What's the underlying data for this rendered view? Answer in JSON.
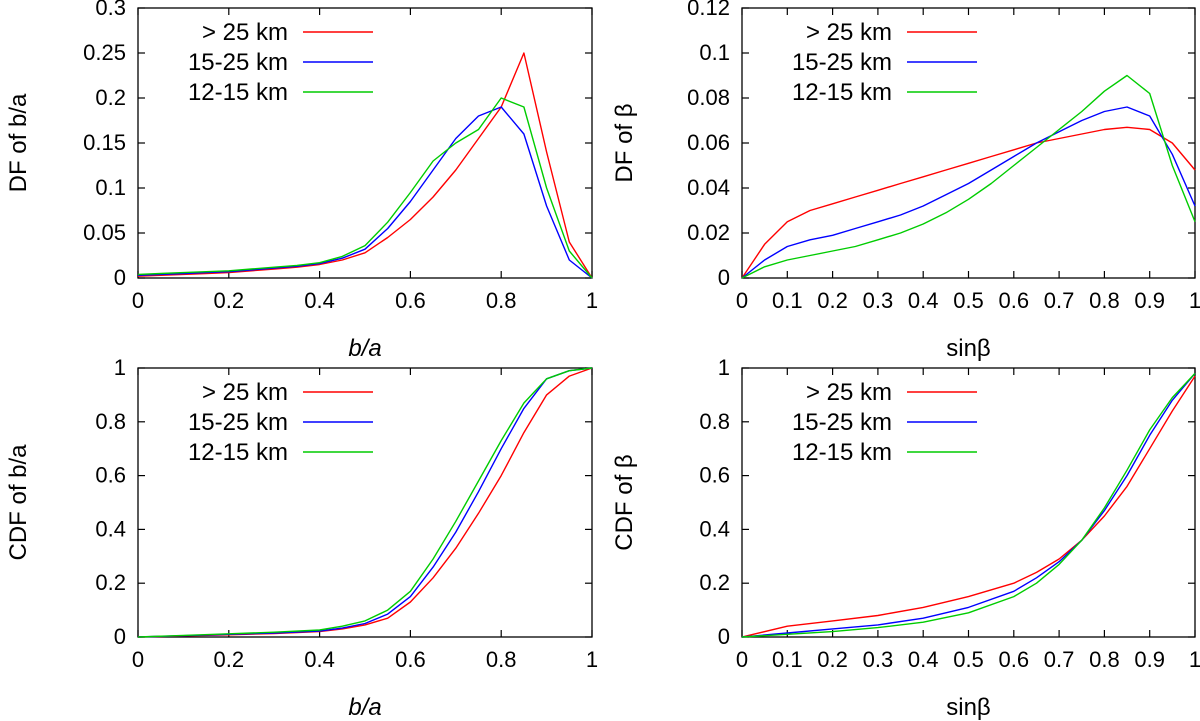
{
  "chart_data": [
    {
      "type": "line",
      "xlabel": "b/a",
      "ylabel": "DF of b/a",
      "xlim": [
        0,
        1
      ],
      "ylim": [
        0,
        0.3
      ],
      "xticks": [
        "0",
        "0.2",
        "0.4",
        "0.6",
        "0.8",
        "1"
      ],
      "xtick_values": [
        0,
        0.2,
        0.4,
        0.6,
        0.8,
        1
      ],
      "yticks": [
        "0",
        "0.05",
        "0.1",
        "0.15",
        "0.2",
        "0.25",
        "0.3"
      ],
      "ytick_values": [
        0,
        0.05,
        0.1,
        0.15,
        0.2,
        0.25,
        0.3
      ],
      "grid": false,
      "legend_position": "top-left",
      "series": [
        {
          "name": "> 25 km",
          "color": "#ff0000",
          "x": [
            0,
            0.05,
            0.1,
            0.15,
            0.2,
            0.25,
            0.3,
            0.35,
            0.4,
            0.45,
            0.5,
            0.55,
            0.6,
            0.65,
            0.7,
            0.75,
            0.8,
            0.85,
            0.9,
            0.95,
            1
          ],
          "y": [
            0.002,
            0.003,
            0.004,
            0.005,
            0.006,
            0.008,
            0.01,
            0.012,
            0.015,
            0.02,
            0.028,
            0.045,
            0.065,
            0.09,
            0.12,
            0.155,
            0.19,
            0.25,
            0.14,
            0.04,
            0
          ]
        },
        {
          "name": "15-25 km",
          "color": "#0000ff",
          "x": [
            0,
            0.05,
            0.1,
            0.15,
            0.2,
            0.25,
            0.3,
            0.35,
            0.4,
            0.45,
            0.5,
            0.55,
            0.6,
            0.65,
            0.7,
            0.75,
            0.8,
            0.85,
            0.9,
            0.95,
            1
          ],
          "y": [
            0.003,
            0.004,
            0.005,
            0.006,
            0.007,
            0.009,
            0.011,
            0.013,
            0.016,
            0.022,
            0.032,
            0.055,
            0.085,
            0.12,
            0.155,
            0.18,
            0.19,
            0.16,
            0.08,
            0.02,
            0
          ]
        },
        {
          "name": "12-15 km",
          "color": "#00cc00",
          "x": [
            0,
            0.05,
            0.1,
            0.15,
            0.2,
            0.25,
            0.3,
            0.35,
            0.4,
            0.45,
            0.5,
            0.55,
            0.6,
            0.65,
            0.7,
            0.75,
            0.8,
            0.85,
            0.9,
            0.95,
            1
          ],
          "y": [
            0.004,
            0.005,
            0.006,
            0.007,
            0.008,
            0.01,
            0.012,
            0.014,
            0.017,
            0.024,
            0.036,
            0.062,
            0.095,
            0.13,
            0.15,
            0.165,
            0.2,
            0.19,
            0.1,
            0.03,
            0
          ]
        }
      ]
    },
    {
      "type": "line",
      "xlabel": "sinβ",
      "ylabel": "DF of β",
      "xlim": [
        0,
        1
      ],
      "ylim": [
        0,
        0.12
      ],
      "xticks": [
        "0",
        "0.1",
        "0.2",
        "0.3",
        "0.4",
        "0.5",
        "0.6",
        "0.7",
        "0.8",
        "0.9",
        "1"
      ],
      "xtick_values": [
        0,
        0.1,
        0.2,
        0.3,
        0.4,
        0.5,
        0.6,
        0.7,
        0.8,
        0.9,
        1
      ],
      "yticks": [
        "0",
        "0.02",
        "0.04",
        "0.06",
        "0.08",
        "0.1",
        "0.12"
      ],
      "ytick_values": [
        0,
        0.02,
        0.04,
        0.06,
        0.08,
        0.1,
        0.12
      ],
      "grid": false,
      "legend_position": "top-left",
      "series": [
        {
          "name": "> 25 km",
          "color": "#ff0000",
          "x": [
            0,
            0.05,
            0.1,
            0.15,
            0.2,
            0.25,
            0.3,
            0.35,
            0.4,
            0.45,
            0.5,
            0.55,
            0.6,
            0.65,
            0.7,
            0.75,
            0.8,
            0.85,
            0.9,
            0.95,
            1
          ],
          "y": [
            0,
            0.015,
            0.025,
            0.03,
            0.033,
            0.036,
            0.039,
            0.042,
            0.045,
            0.048,
            0.051,
            0.054,
            0.057,
            0.06,
            0.062,
            0.064,
            0.066,
            0.067,
            0.066,
            0.06,
            0.048
          ]
        },
        {
          "name": "15-25 km",
          "color": "#0000ff",
          "x": [
            0,
            0.05,
            0.1,
            0.15,
            0.2,
            0.25,
            0.3,
            0.35,
            0.4,
            0.45,
            0.5,
            0.55,
            0.6,
            0.65,
            0.7,
            0.75,
            0.8,
            0.85,
            0.9,
            0.95,
            1
          ],
          "y": [
            0,
            0.008,
            0.014,
            0.017,
            0.019,
            0.022,
            0.025,
            0.028,
            0.032,
            0.037,
            0.042,
            0.048,
            0.054,
            0.06,
            0.065,
            0.07,
            0.074,
            0.076,
            0.072,
            0.055,
            0.032
          ]
        },
        {
          "name": "12-15 km",
          "color": "#00cc00",
          "x": [
            0,
            0.05,
            0.1,
            0.15,
            0.2,
            0.25,
            0.3,
            0.35,
            0.4,
            0.45,
            0.5,
            0.55,
            0.6,
            0.65,
            0.7,
            0.75,
            0.8,
            0.85,
            0.9,
            0.95,
            1
          ],
          "y": [
            0,
            0.005,
            0.008,
            0.01,
            0.012,
            0.014,
            0.017,
            0.02,
            0.024,
            0.029,
            0.035,
            0.042,
            0.05,
            0.058,
            0.066,
            0.074,
            0.083,
            0.09,
            0.082,
            0.05,
            0.025
          ]
        }
      ]
    },
    {
      "type": "line",
      "xlabel": "b/a",
      "ylabel": "CDF of b/a",
      "xlim": [
        0,
        1
      ],
      "ylim": [
        0,
        1
      ],
      "xticks": [
        "0",
        "0.2",
        "0.4",
        "0.6",
        "0.8",
        "1"
      ],
      "xtick_values": [
        0,
        0.2,
        0.4,
        0.6,
        0.8,
        1
      ],
      "yticks": [
        "0",
        "0.2",
        "0.4",
        "0.6",
        "0.8",
        "1"
      ],
      "ytick_values": [
        0,
        0.2,
        0.4,
        0.6,
        0.8,
        1
      ],
      "grid": false,
      "legend_position": "top-left",
      "series": [
        {
          "name": "> 25 km",
          "color": "#ff0000",
          "x": [
            0,
            0.1,
            0.2,
            0.3,
            0.4,
            0.45,
            0.5,
            0.55,
            0.6,
            0.65,
            0.7,
            0.75,
            0.8,
            0.85,
            0.9,
            0.95,
            1
          ],
          "y": [
            0,
            0.004,
            0.008,
            0.013,
            0.02,
            0.03,
            0.045,
            0.07,
            0.13,
            0.22,
            0.33,
            0.46,
            0.6,
            0.76,
            0.9,
            0.97,
            1
          ]
        },
        {
          "name": "15-25 km",
          "color": "#0000ff",
          "x": [
            0,
            0.1,
            0.2,
            0.3,
            0.4,
            0.45,
            0.5,
            0.55,
            0.6,
            0.65,
            0.7,
            0.75,
            0.8,
            0.85,
            0.9,
            0.95,
            1
          ],
          "y": [
            0,
            0.005,
            0.01,
            0.015,
            0.022,
            0.033,
            0.05,
            0.085,
            0.15,
            0.26,
            0.39,
            0.54,
            0.7,
            0.85,
            0.96,
            0.99,
            1
          ]
        },
        {
          "name": "12-15 km",
          "color": "#00cc00",
          "x": [
            0,
            0.1,
            0.2,
            0.3,
            0.4,
            0.45,
            0.5,
            0.55,
            0.6,
            0.65,
            0.7,
            0.75,
            0.8,
            0.85,
            0.9,
            0.95,
            1
          ],
          "y": [
            0,
            0.006,
            0.012,
            0.018,
            0.026,
            0.04,
            0.06,
            0.1,
            0.17,
            0.29,
            0.43,
            0.58,
            0.73,
            0.87,
            0.96,
            0.99,
            1
          ]
        }
      ]
    },
    {
      "type": "line",
      "xlabel": "sinβ",
      "ylabel": "CDF of β",
      "xlim": [
        0,
        1
      ],
      "ylim": [
        0,
        1
      ],
      "xticks": [
        "0",
        "0.1",
        "0.2",
        "0.3",
        "0.4",
        "0.5",
        "0.6",
        "0.7",
        "0.8",
        "0.9",
        "1"
      ],
      "xtick_values": [
        0,
        0.1,
        0.2,
        0.3,
        0.4,
        0.5,
        0.6,
        0.7,
        0.8,
        0.9,
        1
      ],
      "yticks": [
        "0",
        "0.2",
        "0.4",
        "0.6",
        "0.8",
        "1"
      ],
      "ytick_values": [
        0,
        0.2,
        0.4,
        0.6,
        0.8,
        1
      ],
      "grid": false,
      "legend_position": "top-left",
      "series": [
        {
          "name": "> 25 km",
          "color": "#ff0000",
          "x": [
            0,
            0.1,
            0.2,
            0.3,
            0.4,
            0.5,
            0.6,
            0.65,
            0.7,
            0.75,
            0.8,
            0.85,
            0.9,
            0.95,
            1
          ],
          "y": [
            0,
            0.04,
            0.06,
            0.08,
            0.11,
            0.15,
            0.2,
            0.24,
            0.29,
            0.36,
            0.45,
            0.56,
            0.7,
            0.84,
            0.97
          ]
        },
        {
          "name": "15-25 km",
          "color": "#0000ff",
          "x": [
            0,
            0.1,
            0.2,
            0.3,
            0.4,
            0.5,
            0.6,
            0.65,
            0.7,
            0.75,
            0.8,
            0.85,
            0.9,
            0.95,
            1
          ],
          "y": [
            0,
            0.015,
            0.03,
            0.045,
            0.07,
            0.11,
            0.17,
            0.22,
            0.28,
            0.36,
            0.47,
            0.6,
            0.75,
            0.88,
            0.98
          ]
        },
        {
          "name": "12-15 km",
          "color": "#00cc00",
          "x": [
            0,
            0.1,
            0.2,
            0.3,
            0.4,
            0.5,
            0.6,
            0.65,
            0.7,
            0.75,
            0.8,
            0.85,
            0.9,
            0.95,
            1
          ],
          "y": [
            0,
            0.01,
            0.02,
            0.035,
            0.055,
            0.09,
            0.15,
            0.2,
            0.27,
            0.36,
            0.48,
            0.62,
            0.77,
            0.89,
            0.98
          ]
        }
      ]
    }
  ]
}
